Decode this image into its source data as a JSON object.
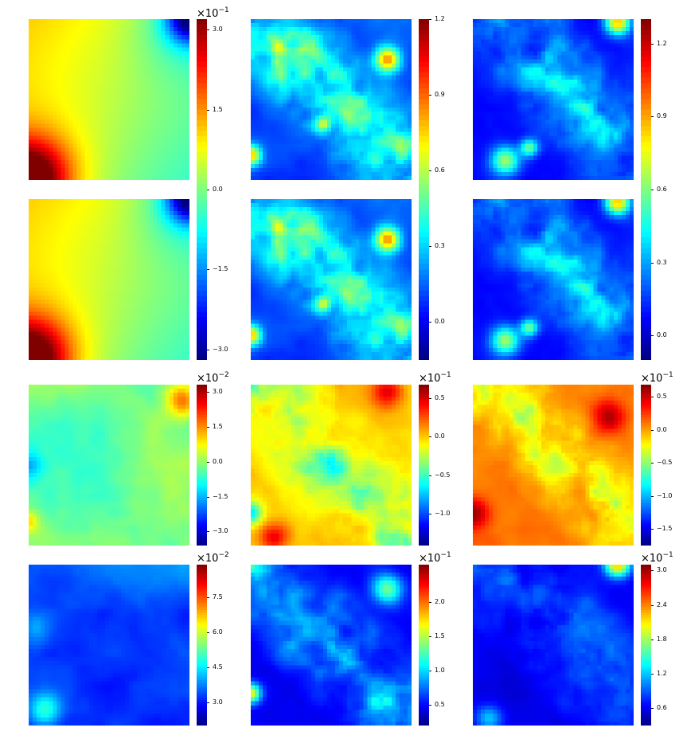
{
  "chart_data": {
    "type": "heatmap",
    "colormap": "jet",
    "layout": {
      "rows": 4,
      "cols": 3
    },
    "panels": [
      {
        "row": 0,
        "col": 0,
        "description": "smooth field, max at bottom-left, min at top-right"
      },
      {
        "row": 0,
        "col": 1,
        "description": "mostly low values with streaks along a diagonal band"
      },
      {
        "row": 0,
        "col": 2,
        "description": "mostly low values, high at bottom-left and top-right edges"
      },
      {
        "row": 1,
        "col": 0,
        "description": "smooth field, max at bottom-left, min at top-right"
      },
      {
        "row": 1,
        "col": 1,
        "description": "mostly low values with streaks along a diagonal band"
      },
      {
        "row": 1,
        "col": 2,
        "description": "mostly low values, high at bottom-left and top-right edges"
      },
      {
        "row": 2,
        "col": 0,
        "description": "near-zero error field, slightly positive top-right"
      },
      {
        "row": 2,
        "col": 1,
        "description": "mostly positive with negative diagonal streaks"
      },
      {
        "row": 2,
        "col": 2,
        "description": "mostly positive, strong at bottom-left and top-right"
      },
      {
        "row": 3,
        "col": 0,
        "description": "low values, higher near top and bottom-left"
      },
      {
        "row": 3,
        "col": 1,
        "description": "low values with streaks along a diagonal band"
      },
      {
        "row": 3,
        "col": 2,
        "description": "low values, highest at top-right corner"
      }
    ],
    "colorbars": [
      {
        "id": "cb-top-left",
        "multiplier": "×10",
        "exponent": "−1",
        "range": [
          -3.2,
          3.2
        ],
        "ticks": [
          "3.0",
          "1.5",
          "0.0",
          "−1.5",
          "−3.0"
        ],
        "tick_values": [
          3.0,
          1.5,
          0.0,
          -1.5,
          -3.0
        ]
      },
      {
        "id": "cb-top-mid",
        "multiplier": "",
        "exponent": "",
        "range": [
          -0.15,
          1.2
        ],
        "ticks": [
          "1.2",
          "0.9",
          "0.6",
          "0.3",
          "0.0"
        ],
        "tick_values": [
          1.2,
          0.9,
          0.6,
          0.3,
          0.0
        ]
      },
      {
        "id": "cb-top-right",
        "multiplier": "",
        "exponent": "",
        "range": [
          -0.1,
          1.3
        ],
        "ticks": [
          "1.2",
          "0.9",
          "0.6",
          "0.3",
          "0.0"
        ],
        "tick_values": [
          1.2,
          0.9,
          0.6,
          0.3,
          0.0
        ]
      },
      {
        "id": "cb-r3-c1",
        "multiplier": "×10",
        "exponent": "−2",
        "range": [
          -3.6,
          3.3
        ],
        "ticks": [
          "3.0",
          "1.5",
          "0.0",
          "−1.5",
          "−3.0"
        ],
        "tick_values": [
          3.0,
          1.5,
          0.0,
          -1.5,
          -3.0
        ]
      },
      {
        "id": "cb-r3-c2",
        "multiplier": "×10",
        "exponent": "−1",
        "range": [
          -1.42,
          0.68
        ],
        "ticks": [
          "0.5",
          "0.0",
          "−0.5",
          "−1.0"
        ],
        "tick_values": [
          0.5,
          0.0,
          -0.5,
          -1.0
        ]
      },
      {
        "id": "cb-r3-c3",
        "multiplier": "×10",
        "exponent": "−1",
        "range": [
          -1.75,
          0.68
        ],
        "ticks": [
          "0.5",
          "0.0",
          "−0.5",
          "−1.0",
          "−1.5"
        ],
        "tick_values": [
          0.5,
          0.0,
          -0.5,
          -1.0,
          -1.5
        ]
      },
      {
        "id": "cb-r4-c1",
        "multiplier": "×10",
        "exponent": "−2",
        "range": [
          2.0,
          8.9
        ],
        "ticks": [
          "7.5",
          "6.0",
          "4.5",
          "3.0"
        ],
        "tick_values": [
          7.5,
          6.0,
          4.5,
          3.0
        ]
      },
      {
        "id": "cb-r4-c2",
        "multiplier": "×10",
        "exponent": "−1",
        "range": [
          0.2,
          2.55
        ],
        "ticks": [
          "2.0",
          "1.5",
          "1.0",
          "0.5"
        ],
        "tick_values": [
          2.0,
          1.5,
          1.0,
          0.5
        ]
      },
      {
        "id": "cb-r4-c3",
        "multiplier": "×10",
        "exponent": "−1",
        "range": [
          0.3,
          3.1
        ],
        "ticks": [
          "3.0",
          "2.4",
          "1.8",
          "1.2",
          "0.6"
        ],
        "tick_values": [
          3.0,
          2.4,
          1.8,
          1.2,
          0.6
        ]
      }
    ]
  }
}
